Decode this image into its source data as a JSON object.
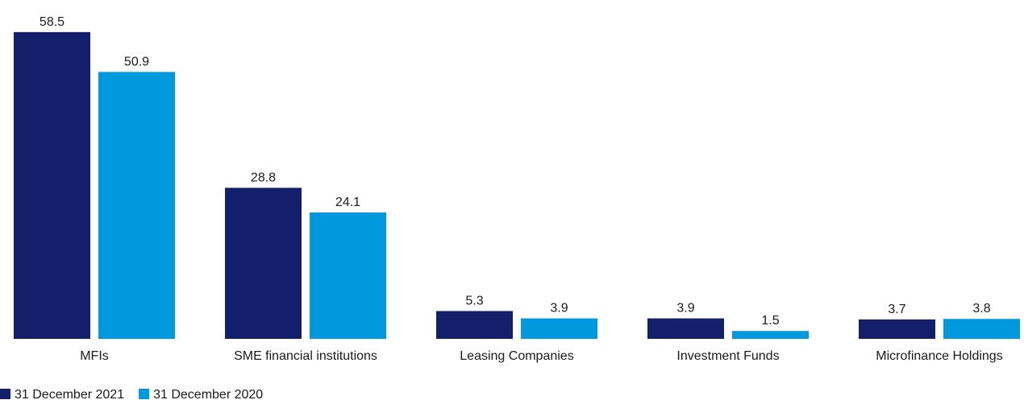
{
  "chart_data": {
    "type": "bar",
    "categories": [
      "MFIs",
      "SME financial institutions",
      "Leasing Companies",
      "Investment Funds",
      "Microfinance Holdings"
    ],
    "series": [
      {
        "name": "31 December 2021",
        "color": "#141f6b",
        "values": [
          58.5,
          28.8,
          5.3,
          3.9,
          3.7
        ]
      },
      {
        "name": "31 December 2020",
        "color": "#0099dd",
        "values": [
          50.9,
          24.1,
          3.9,
          1.5,
          3.8
        ]
      }
    ],
    "legend": "bottom-left"
  }
}
